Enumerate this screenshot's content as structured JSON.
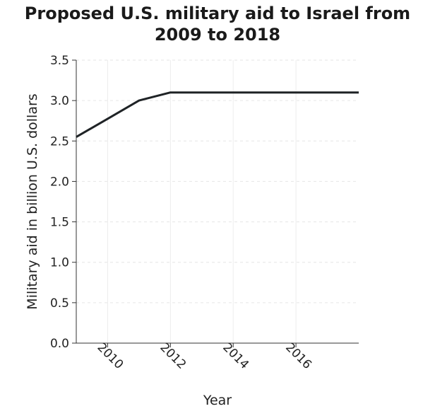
{
  "chart_data": {
    "type": "line",
    "title_lines": [
      "Proposed U.S. military aid to Israel from",
      "2009 to 2018"
    ],
    "xlabel": "Year",
    "ylabel": "Military aid in billion U.S. dollars",
    "x_ticks": [
      2010,
      2012,
      2014,
      2016
    ],
    "y_ticks": [
      "0.0",
      "0.5",
      "1.0",
      "1.5",
      "2.0",
      "2.5",
      "3.0",
      "3.5"
    ],
    "xlim": [
      2009,
      2018
    ],
    "ylim": [
      0,
      3.5
    ],
    "grid": true,
    "series": [
      {
        "color": "#1f2326",
        "x": [
          2009,
          2010,
          2011,
          2012,
          2013,
          2014,
          2015,
          2016,
          2017,
          2018
        ],
        "values": [
          2.55,
          2.775,
          3.0,
          3.1,
          3.1,
          3.1,
          3.1,
          3.1,
          3.1,
          3.1
        ]
      }
    ]
  }
}
